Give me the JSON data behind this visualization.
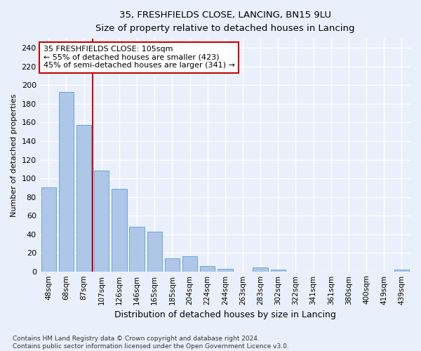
{
  "title1": "35, FRESHFIELDS CLOSE, LANCING, BN15 9LU",
  "title2": "Size of property relative to detached houses in Lancing",
  "xlabel": "Distribution of detached houses by size in Lancing",
  "ylabel": "Number of detached properties",
  "categories": [
    "48sqm",
    "68sqm",
    "87sqm",
    "107sqm",
    "126sqm",
    "146sqm",
    "165sqm",
    "185sqm",
    "204sqm",
    "224sqm",
    "244sqm",
    "263sqm",
    "283sqm",
    "302sqm",
    "322sqm",
    "341sqm",
    "361sqm",
    "380sqm",
    "400sqm",
    "419sqm",
    "439sqm"
  ],
  "values": [
    90,
    193,
    157,
    108,
    89,
    48,
    43,
    14,
    16,
    6,
    3,
    0,
    4,
    2,
    0,
    0,
    0,
    0,
    0,
    0,
    2
  ],
  "bar_color": "#aec6e8",
  "bar_edge_color": "#5a9fd4",
  "highlight_color": "#cc0000",
  "annotation_box_text": "35 FRESHFIELDS CLOSE: 105sqm\n← 55% of detached houses are smaller (423)\n45% of semi-detached houses are larger (341) →",
  "ylim": [
    0,
    250
  ],
  "yticks": [
    0,
    20,
    40,
    60,
    80,
    100,
    120,
    140,
    160,
    180,
    200,
    220,
    240
  ],
  "bg_color": "#eaf0fb",
  "fig_color": "#eaf0fb",
  "grid_color": "#ffffff",
  "footnote": "Contains HM Land Registry data © Crown copyright and database right 2024.\nContains public sector information licensed under the Open Government Licence v3.0."
}
